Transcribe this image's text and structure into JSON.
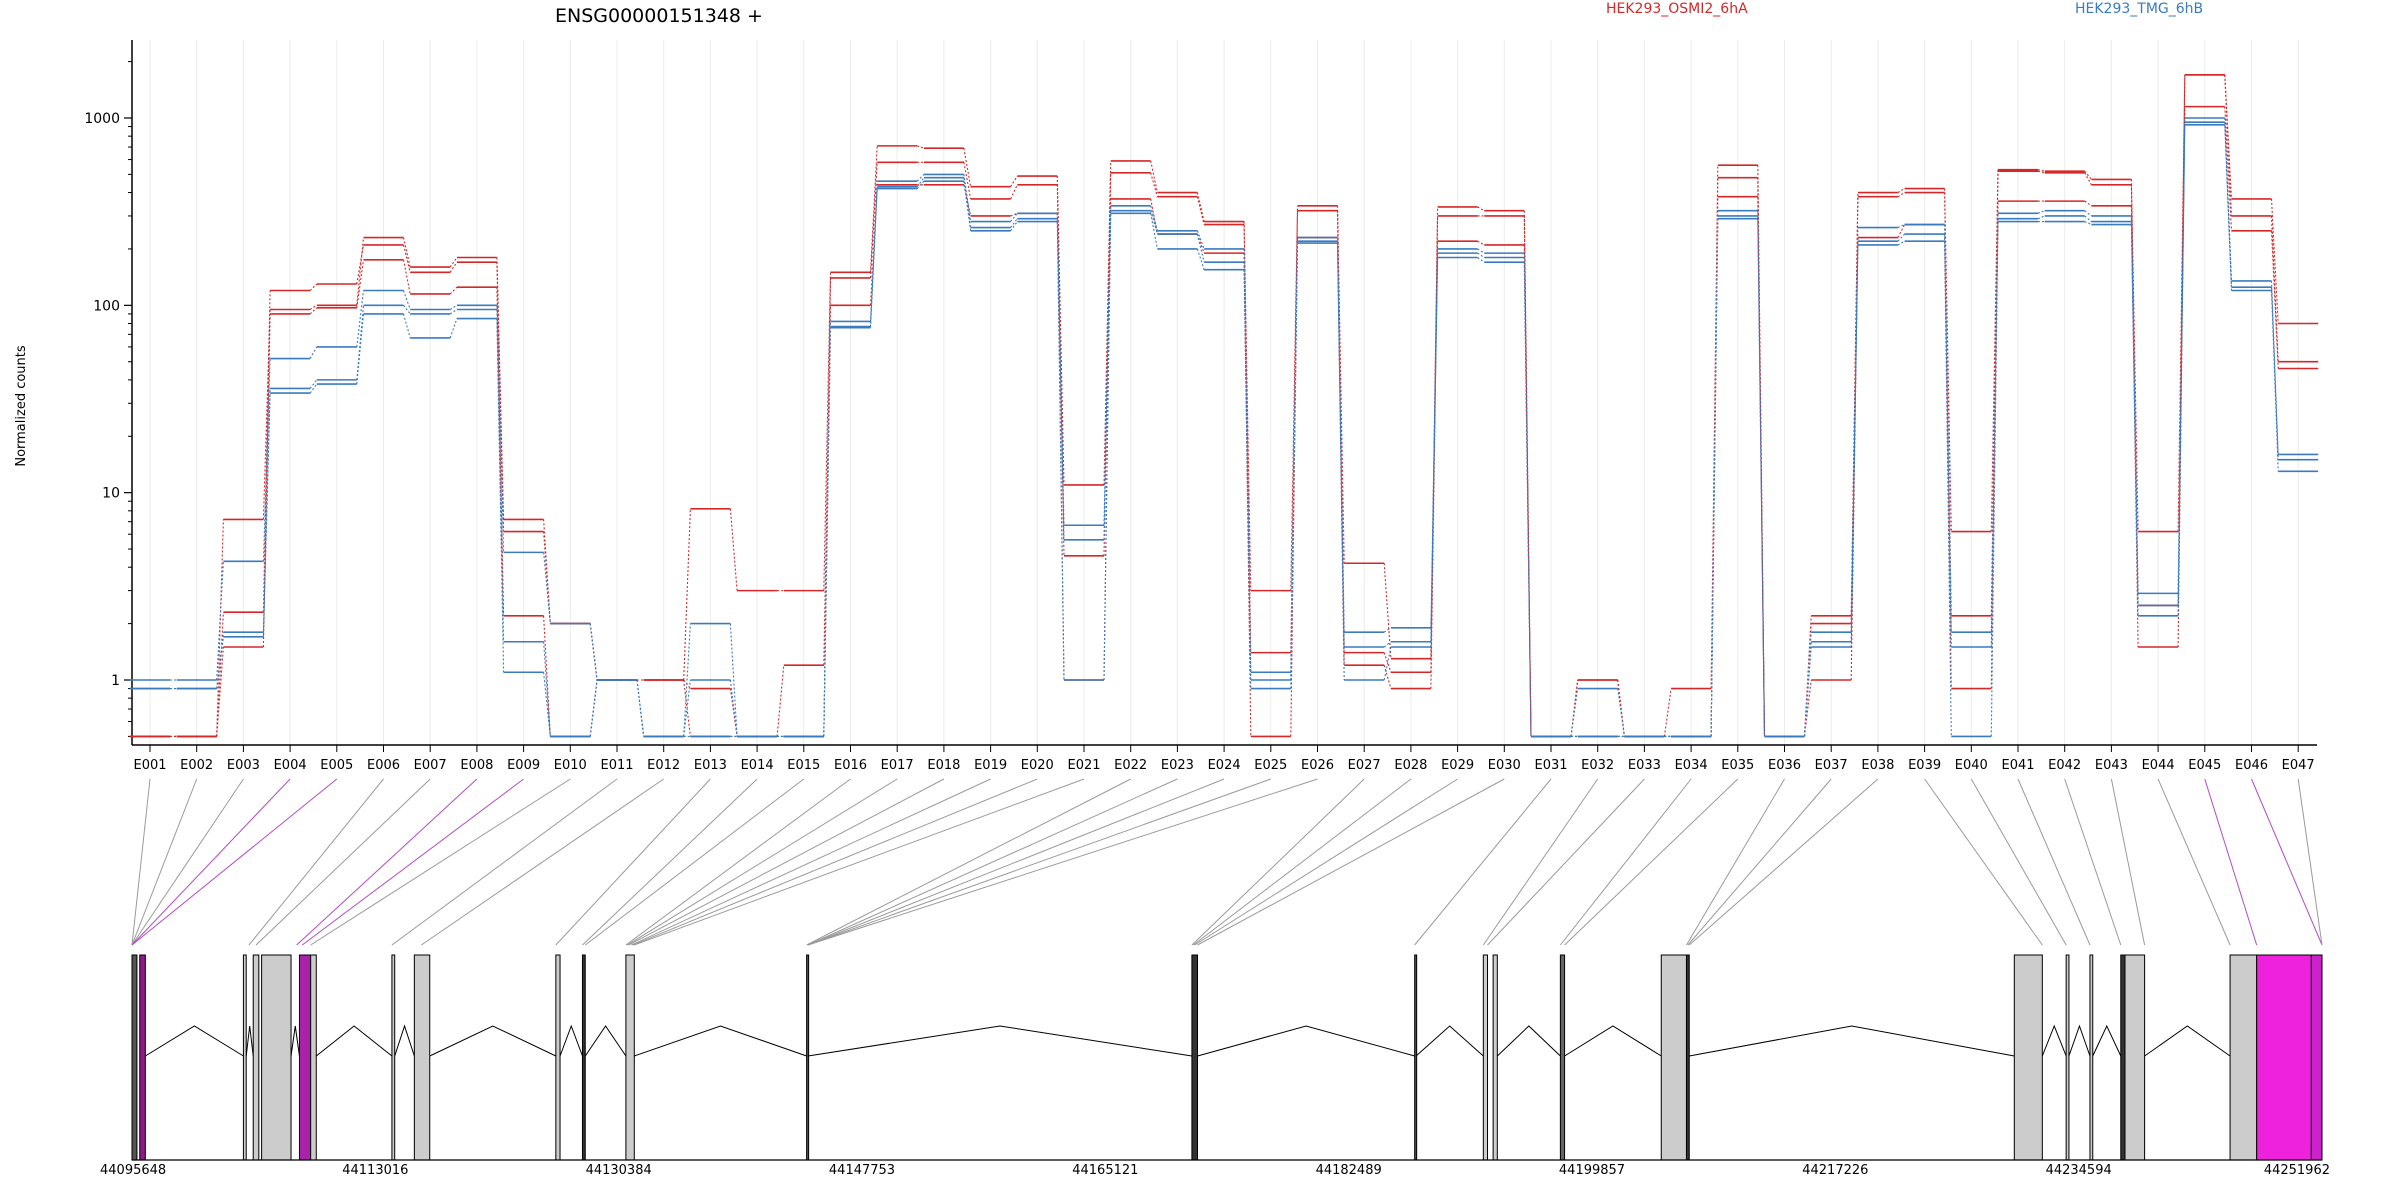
{
  "chart_data": {
    "type": "line",
    "title": "ENSG00000151348 +",
    "ylabel": "Normalized counts",
    "yscale": "log",
    "ylim": [
      0.5,
      2500
    ],
    "yticks": [
      1,
      10,
      100,
      1000
    ],
    "ytick_labels": [
      "1",
      "10",
      "100",
      "1000"
    ],
    "grid": true,
    "legend": [
      {
        "label": "HEK293_OSMI2_6hA",
        "color": "#d62728"
      },
      {
        "label": "HEK293_TMG_6hB",
        "color": "#3a7bbf"
      }
    ],
    "categories": [
      "E001",
      "E002",
      "E003",
      "E004",
      "E005",
      "E006",
      "E007",
      "E008",
      "E009",
      "E010",
      "E011",
      "E012",
      "E013",
      "E014",
      "E015",
      "E016",
      "E017",
      "E018",
      "E019",
      "E020",
      "E021",
      "E022",
      "E023",
      "E024",
      "E025",
      "E026",
      "E027",
      "E028",
      "E029",
      "E030",
      "E031",
      "E032",
      "E033",
      "E034",
      "E035",
      "E036",
      "E037",
      "E038",
      "E039",
      "E040",
      "E041",
      "E042",
      "E043",
      "E044",
      "E045",
      "E046",
      "E047"
    ],
    "series": [
      {
        "group": "HEK293_OSMI2_6hA",
        "color": "#d62728",
        "values": [
          0.5,
          0.5,
          7.2,
          95,
          100,
          230,
          160,
          180,
          7.2,
          2.0,
          1.0,
          1.0,
          8.2,
          3.0,
          3.0,
          150,
          710,
          690,
          430,
          490,
          11,
          590,
          400,
          280,
          3.0,
          340,
          4.2,
          1.3,
          335,
          320,
          0.5,
          1.0,
          0.5,
          0.9,
          560,
          0.5,
          2.2,
          400,
          420,
          6.2,
          530,
          520,
          470,
          6.2,
          1700,
          370,
          80
        ]
      },
      {
        "group": "HEK293_OSMI2_6hA",
        "color": "#d62728",
        "values": [
          0.5,
          0.5,
          2.3,
          120,
          130,
          210,
          150,
          170,
          6.2,
          2.0,
          1.0,
          1.0,
          0.9,
          0.5,
          0.5,
          140,
          580,
          580,
          370,
          440,
          4.6,
          510,
          380,
          270,
          1.4,
          320,
          1.4,
          1.1,
          300,
          300,
          0.5,
          1.0,
          0.5,
          0.5,
          480,
          0.5,
          2.0,
          380,
          400,
          2.2,
          520,
          510,
          440,
          2.5,
          1700,
          300,
          50
        ]
      },
      {
        "group": "HEK293_OSMI2_6hA",
        "color": "#d62728",
        "values": [
          0.5,
          0.5,
          1.5,
          90,
          97,
          175,
          115,
          125,
          2.2,
          0.5,
          1.0,
          1.0,
          0.5,
          0.5,
          1.2,
          100,
          440,
          440,
          300,
          310,
          1.0,
          370,
          240,
          190,
          0.5,
          230,
          1.2,
          0.9,
          220,
          210,
          0.5,
          0.5,
          0.5,
          0.5,
          380,
          0.5,
          1.0,
          230,
          270,
          0.9,
          360,
          360,
          340,
          1.5,
          1150,
          250,
          46
        ]
      },
      {
        "group": "HEK293_TMG_6hB",
        "color": "#3a7bbf",
        "values": [
          1.0,
          1.0,
          4.3,
          52,
          60,
          120,
          95,
          100,
          4.8,
          2.0,
          1.0,
          0.5,
          2.0,
          0.5,
          0.5,
          82,
          460,
          500,
          280,
          310,
          6.7,
          340,
          250,
          200,
          1.1,
          230,
          1.8,
          1.9,
          200,
          190,
          0.5,
          0.9,
          0.5,
          0.5,
          320,
          0.5,
          1.8,
          260,
          270,
          1.8,
          310,
          320,
          300,
          2.9,
          1000,
          135,
          16
        ]
      },
      {
        "group": "HEK293_TMG_6hB",
        "color": "#3a7bbf",
        "values": [
          0.9,
          0.9,
          1.8,
          36,
          40,
          100,
          90,
          95,
          1.6,
          0.5,
          1.0,
          0.5,
          1.0,
          0.5,
          0.5,
          77,
          430,
          480,
          260,
          290,
          5.6,
          320,
          240,
          170,
          1.0,
          220,
          1.5,
          1.6,
          190,
          180,
          0.5,
          0.5,
          0.5,
          0.5,
          300,
          0.5,
          1.6,
          220,
          240,
          1.5,
          290,
          300,
          280,
          2.5,
          950,
          125,
          15
        ]
      },
      {
        "group": "HEK293_TMG_6hB",
        "color": "#3a7bbf",
        "values": [
          0.9,
          0.9,
          1.7,
          34,
          38,
          90,
          67,
          85,
          1.1,
          0.5,
          1.0,
          0.5,
          0.5,
          0.5,
          0.5,
          76,
          420,
          460,
          250,
          280,
          1.0,
          310,
          200,
          155,
          0.9,
          215,
          1.0,
          1.5,
          180,
          170,
          0.5,
          0.5,
          0.5,
          0.5,
          290,
          0.5,
          1.5,
          210,
          220,
          0.5,
          280,
          280,
          270,
          2.2,
          920,
          120,
          13
        ]
      }
    ],
    "genomic_axis": {
      "ticks": [
        "44095648",
        "44113016",
        "44130384",
        "44147753",
        "44165121",
        "44182489",
        "44199857",
        "44217226",
        "44234594",
        "44251962"
      ],
      "range": [
        44095648,
        44251962
      ]
    },
    "gene_model": {
      "exons": [
        {
          "start": 44095648,
          "end": 44096000,
          "fill": "#555555"
        },
        {
          "start": 44096200,
          "end": 44096600,
          "fill": "#8b1a8b"
        },
        {
          "start": 44103600,
          "end": 44103800,
          "fill": "#cccccc"
        },
        {
          "start": 44104300,
          "end": 44104700,
          "fill": "#cccccc"
        },
        {
          "start": 44104900,
          "end": 44107000,
          "fill": "#cccccc"
        },
        {
          "start": 44107600,
          "end": 44108400,
          "fill": "#aa22aa"
        },
        {
          "start": 44108400,
          "end": 44108800,
          "fill": "#cccccc"
        },
        {
          "start": 44114200,
          "end": 44114400,
          "fill": "#cccccc"
        },
        {
          "start": 44115800,
          "end": 44116900,
          "fill": "#cccccc"
        },
        {
          "start": 44125900,
          "end": 44126200,
          "fill": "#cccccc"
        },
        {
          "start": 44127800,
          "end": 44128000,
          "fill": "#333333"
        },
        {
          "start": 44130900,
          "end": 44131500,
          "fill": "#cccccc"
        },
        {
          "start": 44143800,
          "end": 44143900,
          "fill": "#555555"
        },
        {
          "start": 44171300,
          "end": 44171700,
          "fill": "#333333"
        },
        {
          "start": 44187200,
          "end": 44187300,
          "fill": "#555555"
        },
        {
          "start": 44192100,
          "end": 44192400,
          "fill": "#cccccc"
        },
        {
          "start": 44192800,
          "end": 44193100,
          "fill": "#cccccc"
        },
        {
          "start": 44197600,
          "end": 44197900,
          "fill": "#666666"
        },
        {
          "start": 44204800,
          "end": 44206600,
          "fill": "#cccccc"
        },
        {
          "start": 44206600,
          "end": 44206800,
          "fill": "#333333"
        },
        {
          "start": 44230000,
          "end": 44232000,
          "fill": "#cccccc"
        },
        {
          "start": 44233700,
          "end": 44233900,
          "fill": "#cccccc"
        },
        {
          "start": 44235400,
          "end": 44235600,
          "fill": "#cccccc"
        },
        {
          "start": 44237600,
          "end": 44237900,
          "fill": "#333333"
        },
        {
          "start": 44237900,
          "end": 44239300,
          "fill": "#cccccc"
        },
        {
          "start": 44245400,
          "end": 44247300,
          "fill": "#cccccc"
        },
        {
          "start": 44247300,
          "end": 44251200,
          "fill": "#ee22dd"
        },
        {
          "start": 44251200,
          "end": 44251962,
          "fill": "#cc22cc"
        }
      ],
      "connector_bins": [
        {
          "exon": "E001",
          "g": 44095648
        },
        {
          "exon": "E002",
          "g": 44095648
        },
        {
          "exon": "E003",
          "g": 44095648
        },
        {
          "exon": "E004",
          "g": 44095648,
          "highlight": true
        },
        {
          "exon": "E005",
          "g": 44095648,
          "highlight": true
        },
        {
          "exon": "E006",
          "g": 44104000
        },
        {
          "exon": "E007",
          "g": 44104500
        },
        {
          "exon": "E008",
          "g": 44107400,
          "highlight": true
        },
        {
          "exon": "E009",
          "g": 44107800,
          "highlight": true
        },
        {
          "exon": "E010",
          "g": 44108400
        },
        {
          "exon": "E011",
          "g": 44114200
        },
        {
          "exon": "E012",
          "g": 44116300
        },
        {
          "exon": "E013",
          "g": 44125900
        },
        {
          "exon": "E014",
          "g": 44127800
        },
        {
          "exon": "E015",
          "g": 44128000
        },
        {
          "exon": "E016",
          "g": 44130900
        },
        {
          "exon": "E017",
          "g": 44131000
        },
        {
          "exon": "E018",
          "g": 44131100
        },
        {
          "exon": "E019",
          "g": 44131300
        },
        {
          "exon": "E020",
          "g": 44131400
        },
        {
          "exon": "E021",
          "g": 44131500
        },
        {
          "exon": "E022",
          "g": 44143800
        },
        {
          "exon": "E023",
          "g": 44143900
        },
        {
          "exon": "E024",
          "g": 44143900
        },
        {
          "exon": "E025",
          "g": 44143900
        },
        {
          "exon": "E026",
          "g": 44143900
        },
        {
          "exon": "E027",
          "g": 44171300
        },
        {
          "exon": "E028",
          "g": 44171400
        },
        {
          "exon": "E029",
          "g": 44171500
        },
        {
          "exon": "E030",
          "g": 44171700
        },
        {
          "exon": "E031",
          "g": 44187200
        },
        {
          "exon": "E032",
          "g": 44192100
        },
        {
          "exon": "E033",
          "g": 44192400
        },
        {
          "exon": "E034",
          "g": 44197600
        },
        {
          "exon": "E035",
          "g": 44197900
        },
        {
          "exon": "E036",
          "g": 44206600
        },
        {
          "exon": "E037",
          "g": 44206700
        },
        {
          "exon": "E038",
          "g": 44206800
        },
        {
          "exon": "E039",
          "g": 44232000
        },
        {
          "exon": "E040",
          "g": 44233700
        },
        {
          "exon": "E041",
          "g": 44235400
        },
        {
          "exon": "E042",
          "g": 44237600
        },
        {
          "exon": "E043",
          "g": 44239300
        },
        {
          "exon": "E044",
          "g": 44245400
        },
        {
          "exon": "E045",
          "g": 44247300,
          "highlight": true
        },
        {
          "exon": "E046",
          "g": 44251962,
          "highlight": true
        },
        {
          "exon": "E047",
          "g": 44251962
        }
      ]
    }
  }
}
